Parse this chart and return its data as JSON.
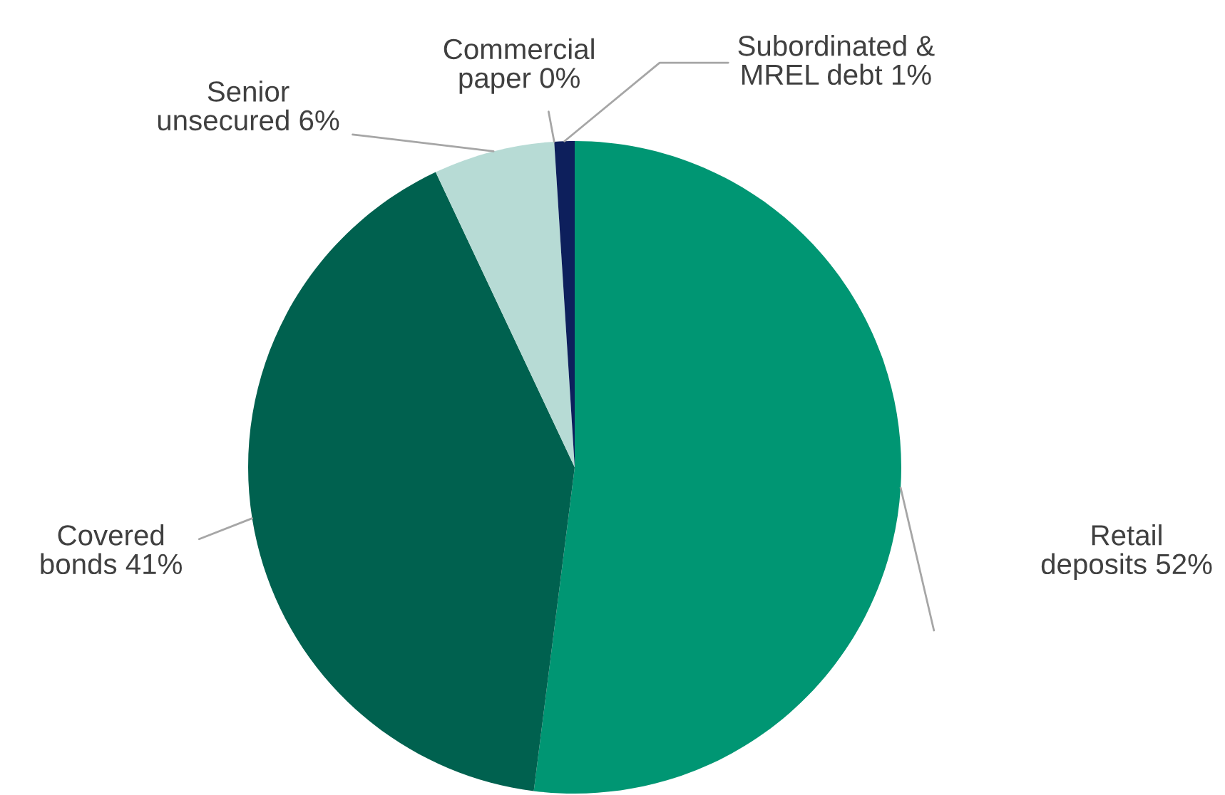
{
  "chart_data": {
    "type": "pie",
    "categories": [
      "Retail\ndeposits",
      "Covered\nbonds",
      "Senior\nunsecured",
      "Commercial\npaper",
      "Subordinated &\nMREL debt"
    ],
    "values": [
      52,
      41,
      6,
      0,
      1
    ],
    "value_labels": [
      "52%",
      "41%",
      "6%",
      "0%",
      "1%"
    ],
    "colors": [
      "#009673",
      "#00614f",
      "#b7dbd5",
      "#7f7f7f",
      "#0d1f5c"
    ],
    "legend": false
  }
}
